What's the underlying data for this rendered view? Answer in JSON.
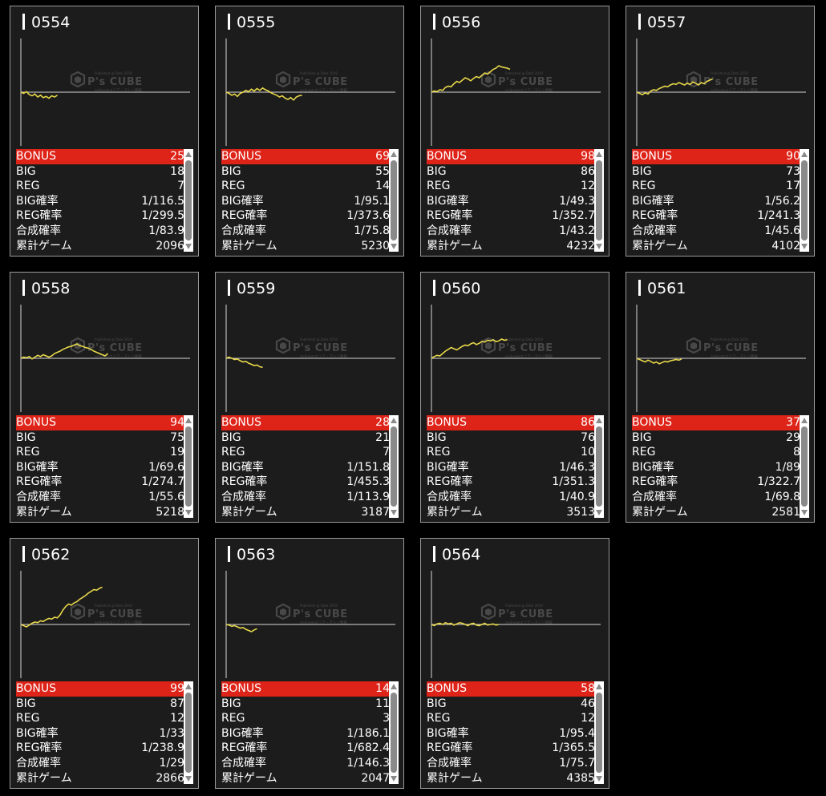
{
  "watermark": {
    "top": "Published @ Date 2019",
    "brand": "P's CUBE",
    "bottom": "online@エリア・マシン情報"
  },
  "colors": {
    "bonus_bg": "#de2318",
    "graph_line": "#e8d84a",
    "card_bg": "#1c1c1c"
  },
  "labels": {
    "bonus": "BONUS",
    "big": "BIG",
    "reg": "REG",
    "big_rate": "BIG確率",
    "reg_rate": "REG確率",
    "total_rate": "合成確率",
    "games": "累計ゲーム"
  },
  "machines": [
    {
      "id": "0554",
      "bonus": "25",
      "big": "18",
      "reg": "7",
      "big_rate": "1/116.5",
      "reg_rate": "1/299.5",
      "total_rate": "1/83.9",
      "games": "2096",
      "trend": [
        0,
        -2,
        1,
        -4,
        -6,
        -3,
        -8,
        -5,
        -9,
        -7,
        -10,
        -6,
        -8,
        -5
      ]
    },
    {
      "id": "0555",
      "bonus": "69",
      "big": "55",
      "reg": "14",
      "big_rate": "1/95.1",
      "reg_rate": "1/373.6",
      "total_rate": "1/75.8",
      "games": "5230",
      "trend": [
        0,
        -2,
        -5,
        -3,
        -7,
        -2,
        0,
        3,
        1,
        5,
        2,
        6,
        3,
        7,
        4,
        2,
        -1,
        -3,
        -5,
        -8,
        -6,
        -10,
        -12,
        -9,
        -13,
        -8,
        -6,
        -5
      ]
    },
    {
      "id": "0556",
      "bonus": "98",
      "big": "86",
      "reg": "12",
      "big_rate": "1/49.3",
      "reg_rate": "1/352.7",
      "total_rate": "1/43.2",
      "games": "4232",
      "trend": [
        0,
        2,
        1,
        4,
        3,
        8,
        10,
        9,
        14,
        18,
        16,
        20,
        24,
        22,
        19,
        23,
        26,
        24,
        28,
        32,
        30,
        34,
        38,
        40,
        44,
        42,
        41,
        40,
        38
      ]
    },
    {
      "id": "0557",
      "bonus": "90",
      "big": "73",
      "reg": "17",
      "big_rate": "1/56.2",
      "reg_rate": "1/241.3",
      "total_rate": "1/45.6",
      "games": "4102",
      "trend": [
        0,
        -2,
        -4,
        -1,
        -3,
        2,
        4,
        3,
        6,
        8,
        10,
        9,
        12,
        14,
        13,
        16,
        14,
        12,
        15,
        13,
        17,
        15,
        12,
        16,
        14,
        18,
        20,
        22
      ]
    },
    {
      "id": "0558",
      "bonus": "94",
      "big": "75",
      "reg": "19",
      "big_rate": "1/69.6",
      "reg_rate": "1/274.7",
      "total_rate": "1/55.6",
      "games": "5218",
      "trend": [
        0,
        2,
        1,
        3,
        -1,
        2,
        5,
        3,
        6,
        4,
        2,
        4,
        8,
        10,
        12,
        15,
        17,
        19,
        20,
        22,
        24,
        21,
        20,
        18,
        17,
        15,
        12,
        10,
        8,
        6,
        4,
        8
      ]
    },
    {
      "id": "0559",
      "bonus": "28",
      "big": "21",
      "reg": "7",
      "big_rate": "1/151.8",
      "reg_rate": "1/455.3",
      "total_rate": "1/113.9",
      "games": "3187",
      "trend": [
        0,
        2,
        0,
        -2,
        -1,
        -4,
        -6,
        -5,
        -8,
        -10,
        -12,
        -11,
        -14,
        -15
      ]
    },
    {
      "id": "0560",
      "bonus": "86",
      "big": "76",
      "reg": "10",
      "big_rate": "1/46.3",
      "reg_rate": "1/351.3",
      "total_rate": "1/40.9",
      "games": "3513",
      "trend": [
        0,
        3,
        5,
        4,
        8,
        12,
        15,
        18,
        16,
        14,
        17,
        20,
        22,
        21,
        24,
        26,
        23,
        25,
        28,
        27,
        30,
        29,
        31,
        28,
        29,
        32,
        30,
        31
      ]
    },
    {
      "id": "0561",
      "bonus": "37",
      "big": "29",
      "reg": "8",
      "big_rate": "1/89",
      "reg_rate": "1/322.7",
      "total_rate": "1/69.8",
      "games": "2581",
      "trend": [
        0,
        -2,
        -4,
        -6,
        -3,
        -5,
        -8,
        -6,
        -9,
        -7,
        -5,
        -6,
        -4,
        -3,
        -2,
        -3,
        -1
      ]
    },
    {
      "id": "0562",
      "bonus": "99",
      "big": "87",
      "reg": "12",
      "big_rate": "1/33",
      "reg_rate": "1/238.9",
      "total_rate": "1/29",
      "games": "2866",
      "trend": [
        0,
        -2,
        -4,
        -1,
        2,
        4,
        3,
        6,
        5,
        8,
        10,
        9,
        12,
        11,
        16,
        24,
        30,
        34,
        32,
        36,
        38,
        42,
        45,
        48,
        52,
        55,
        58,
        57,
        60,
        62
      ]
    },
    {
      "id": "0563",
      "bonus": "14",
      "big": "11",
      "reg": "3",
      "big_rate": "1/186.1",
      "reg_rate": "1/682.4",
      "total_rate": "1/146.3",
      "games": "2047",
      "trend": [
        0,
        -1,
        -3,
        -2,
        -4,
        -6,
        -5,
        -8,
        -10,
        -12,
        -9,
        -7
      ]
    },
    {
      "id": "0564",
      "bonus": "58",
      "big": "46",
      "reg": "12",
      "big_rate": "1/95.4",
      "reg_rate": "1/365.5",
      "total_rate": "1/75.7",
      "games": "4385",
      "trend": [
        0,
        -2,
        1,
        2,
        0,
        3,
        1,
        2,
        -1,
        1,
        3,
        2,
        0,
        -2,
        1,
        2,
        -1,
        -2,
        0,
        2,
        -1,
        0,
        1,
        -1,
        0
      ]
    }
  ]
}
